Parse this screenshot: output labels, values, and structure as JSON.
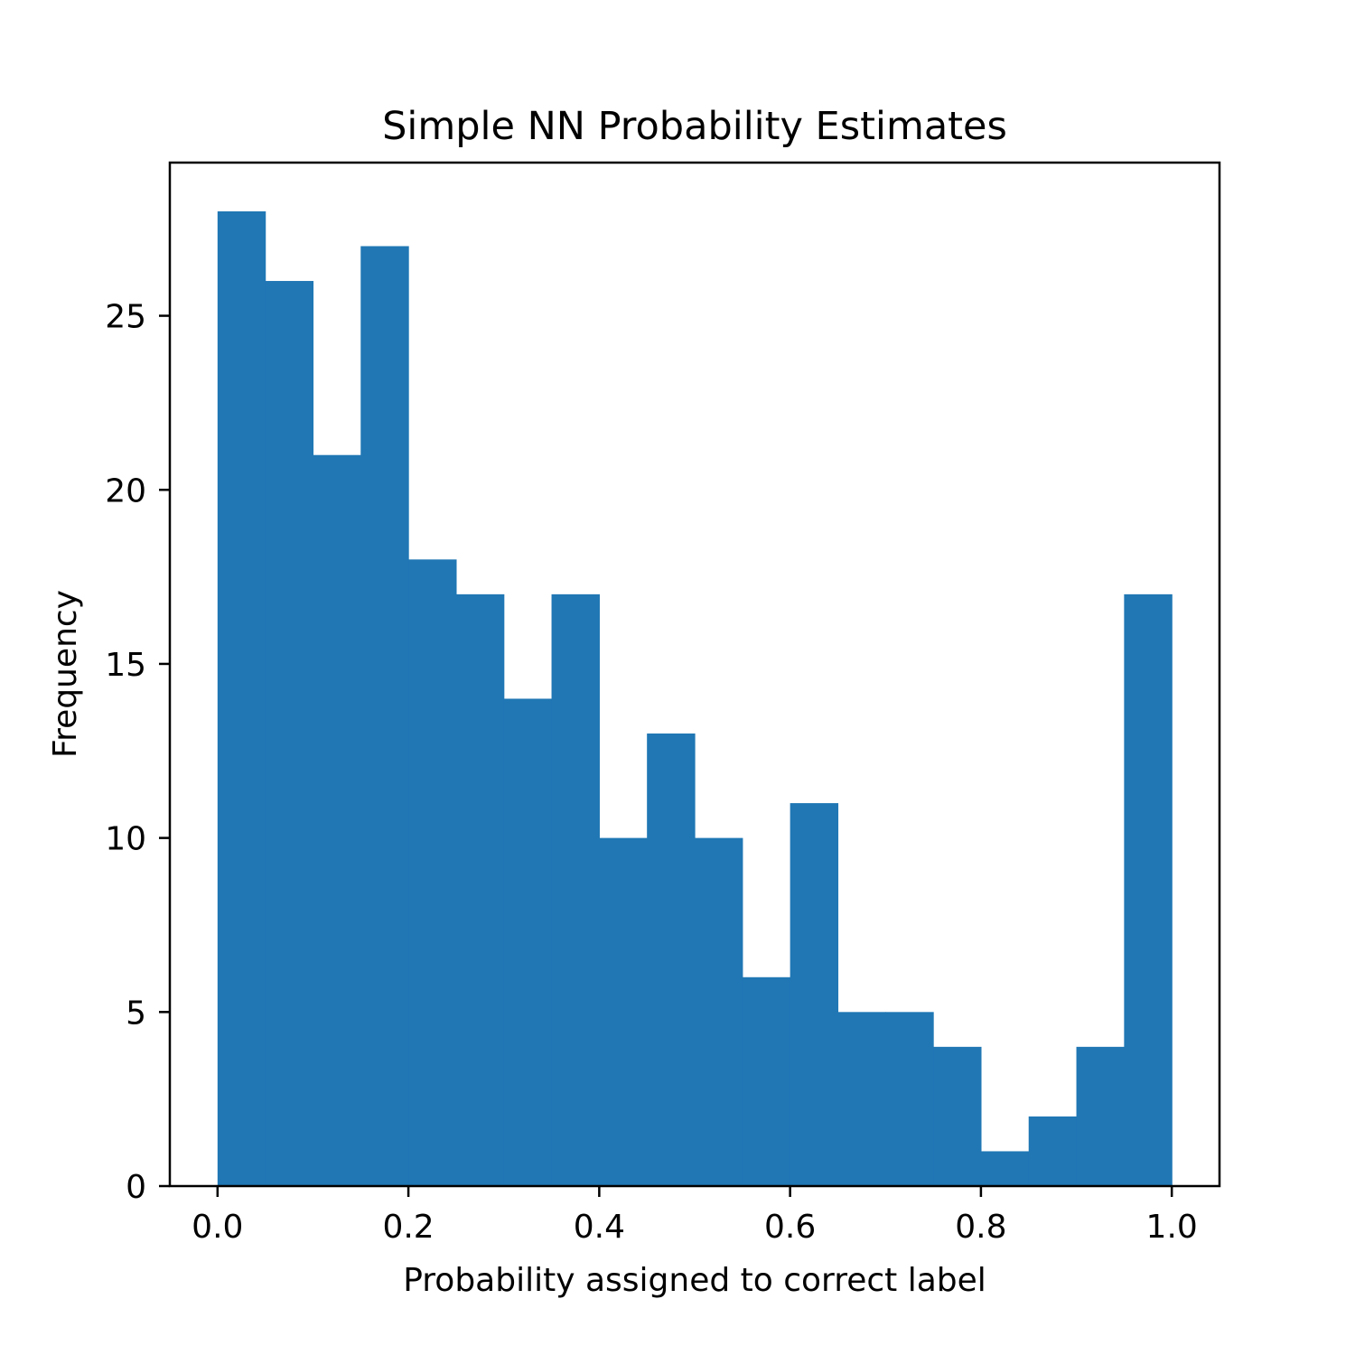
{
  "chart_data": {
    "type": "bar",
    "title": "Simple NN Probability Estimates",
    "xlabel": "Probability assigned to correct label",
    "ylabel": "Frequency",
    "bin_edges": [
      0.0,
      0.05,
      0.1,
      0.15,
      0.2,
      0.25,
      0.3,
      0.35,
      0.4,
      0.45,
      0.5,
      0.55,
      0.6,
      0.65,
      0.7,
      0.75,
      0.8,
      0.85,
      0.9,
      0.95,
      1.0
    ],
    "values": [
      28,
      26,
      21,
      27,
      18,
      17,
      14,
      17,
      10,
      13,
      10,
      6,
      11,
      5,
      5,
      4,
      1,
      2,
      4,
      17
    ],
    "xlim": [
      -0.05,
      1.05
    ],
    "ylim": [
      0,
      29.4
    ],
    "xticks": [
      0.0,
      0.2,
      0.4,
      0.6,
      0.8,
      1.0
    ],
    "xtick_labels": [
      "0.0",
      "0.2",
      "0.4",
      "0.6",
      "0.8",
      "1.0"
    ],
    "yticks": [
      0,
      5,
      10,
      15,
      20,
      25
    ],
    "ytick_labels": [
      "0",
      "5",
      "10",
      "15",
      "20",
      "25"
    ],
    "grid": false,
    "legend": "none",
    "bar_color": "#2077b4"
  }
}
